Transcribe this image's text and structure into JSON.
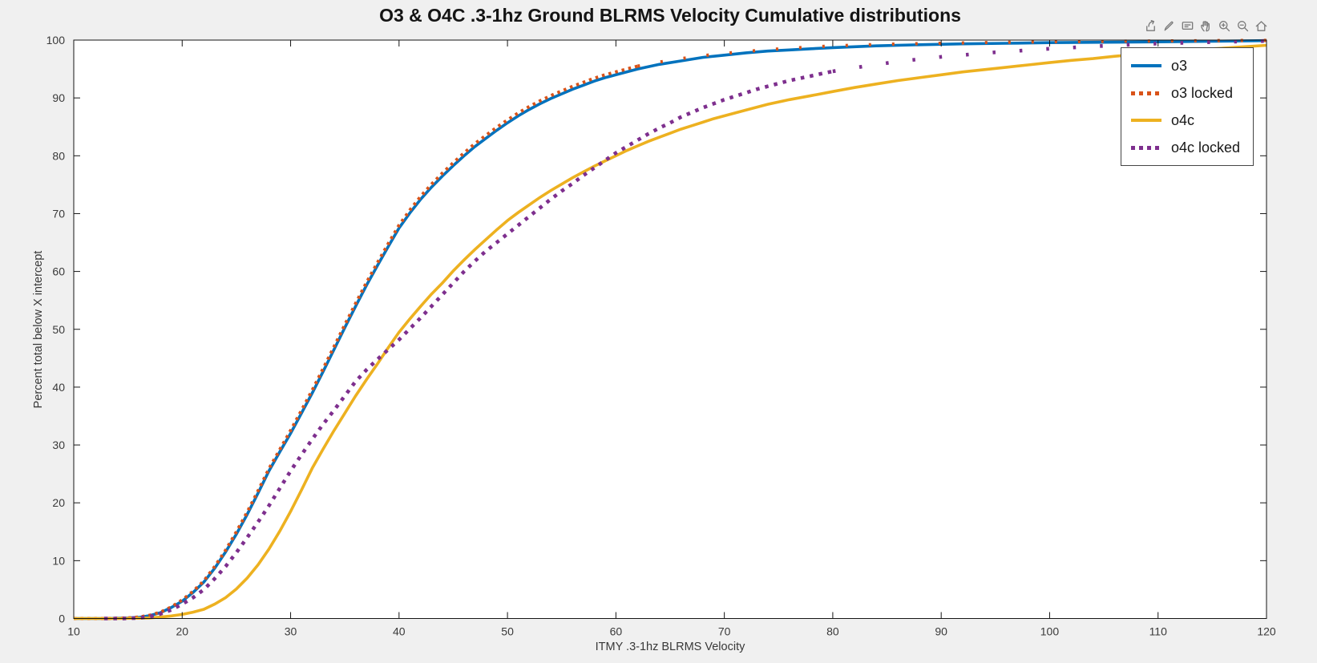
{
  "window": {
    "background": "#f0f0f0"
  },
  "toolbar": {
    "buttons": [
      {
        "name": "export"
      },
      {
        "name": "brush"
      },
      {
        "name": "datatips"
      },
      {
        "name": "pan"
      },
      {
        "name": "zoom-in"
      },
      {
        "name": "zoom-out"
      },
      {
        "name": "restore-view"
      }
    ]
  },
  "chart_data": {
    "type": "line",
    "title": "O3 & O4C .3-1hz Ground BLRMS Velocity Cumulative distributions",
    "xlabel": "ITMY .3-1hz BLRMS Velocity",
    "ylabel": "Percent total below X intercept",
    "xlim": [
      10,
      120
    ],
    "ylim": [
      0,
      100
    ],
    "xticks": [
      10,
      20,
      30,
      40,
      50,
      60,
      70,
      80,
      90,
      100,
      110,
      120
    ],
    "yticks": [
      0,
      10,
      20,
      30,
      40,
      50,
      60,
      70,
      80,
      90,
      100
    ],
    "grid": false,
    "plot_background": "#ffffff",
    "axis_color": "#151515",
    "tick_label_color": "#3a3a3a",
    "legend_position": "top-right",
    "series": [
      {
        "name": "o3",
        "color": "#0072BD",
        "style": "solid",
        "width": 3.6,
        "points": [
          [
            10,
            0
          ],
          [
            13,
            0
          ],
          [
            15,
            0.1
          ],
          [
            16,
            0.2
          ],
          [
            17,
            0.5
          ],
          [
            18,
            1
          ],
          [
            19,
            1.9
          ],
          [
            20,
            3
          ],
          [
            21,
            4.5
          ],
          [
            22,
            6.3
          ],
          [
            23,
            8.7
          ],
          [
            24,
            11.5
          ],
          [
            25,
            14.6
          ],
          [
            26,
            18
          ],
          [
            27,
            21.7
          ],
          [
            28,
            25.5
          ],
          [
            29,
            28.8
          ],
          [
            30,
            32
          ],
          [
            31,
            35.5
          ],
          [
            32,
            39
          ],
          [
            33,
            42.7
          ],
          [
            34,
            46.5
          ],
          [
            35,
            50.3
          ],
          [
            36,
            54
          ],
          [
            37,
            57.6
          ],
          [
            38,
            61
          ],
          [
            39,
            64.3
          ],
          [
            40,
            67.5
          ],
          [
            41,
            70.1
          ],
          [
            42,
            72.5
          ],
          [
            43,
            74.6
          ],
          [
            44,
            76.5
          ],
          [
            45,
            78.3
          ],
          [
            46,
            80
          ],
          [
            47,
            81.6
          ],
          [
            48,
            83
          ],
          [
            49,
            84.4
          ],
          [
            50,
            85.7
          ],
          [
            51,
            86.9
          ],
          [
            52,
            88
          ],
          [
            53,
            89
          ],
          [
            54,
            89.9
          ],
          [
            55,
            90.7
          ],
          [
            56,
            91.5
          ],
          [
            57,
            92.2
          ],
          [
            58,
            92.9
          ],
          [
            59,
            93.5
          ],
          [
            60,
            94
          ],
          [
            62,
            95
          ],
          [
            64,
            95.8
          ],
          [
            66,
            96.4
          ],
          [
            68,
            97
          ],
          [
            70,
            97.4
          ],
          [
            72,
            97.8
          ],
          [
            74,
            98.1
          ],
          [
            76,
            98.3
          ],
          [
            78,
            98.5
          ],
          [
            80,
            98.7
          ],
          [
            84,
            99
          ],
          [
            88,
            99.2
          ],
          [
            92,
            99.35
          ],
          [
            96,
            99.45
          ],
          [
            100,
            99.55
          ],
          [
            105,
            99.62
          ],
          [
            110,
            99.7
          ],
          [
            115,
            99.8
          ],
          [
            120,
            99.9
          ]
        ]
      },
      {
        "name": "o3 locked",
        "color": "#D95319",
        "style": "dotted",
        "width": 4,
        "dash": "3.5 5",
        "sparse_after": 62,
        "sparse_dash": "3 26",
        "points": [
          [
            10,
            0
          ],
          [
            13,
            0
          ],
          [
            15,
            0.1
          ],
          [
            16,
            0.25
          ],
          [
            17,
            0.55
          ],
          [
            18,
            1.1
          ],
          [
            19,
            2
          ],
          [
            20,
            3.2
          ],
          [
            21,
            4.7
          ],
          [
            22,
            6.5
          ],
          [
            23,
            9
          ],
          [
            24,
            11.8
          ],
          [
            25,
            15
          ],
          [
            26,
            18.4
          ],
          [
            27,
            22.1
          ],
          [
            28,
            25.9
          ],
          [
            29,
            29.2
          ],
          [
            30,
            32.5
          ],
          [
            31,
            36
          ],
          [
            32,
            39.5
          ],
          [
            33,
            43.2
          ],
          [
            34,
            47
          ],
          [
            35,
            50.8
          ],
          [
            36,
            54.5
          ],
          [
            37,
            58.1
          ],
          [
            38,
            61.5
          ],
          [
            39,
            64.8
          ],
          [
            40,
            68
          ],
          [
            41,
            70.6
          ],
          [
            42,
            73
          ],
          [
            43,
            75.1
          ],
          [
            44,
            77
          ],
          [
            45,
            78.8
          ],
          [
            46,
            80.5
          ],
          [
            47,
            82.1
          ],
          [
            48,
            83.5
          ],
          [
            49,
            84.9
          ],
          [
            50,
            86.2
          ],
          [
            51,
            87.4
          ],
          [
            52,
            88.5
          ],
          [
            53,
            89.5
          ],
          [
            54,
            90.4
          ],
          [
            55,
            91.2
          ],
          [
            56,
            92
          ],
          [
            57,
            92.7
          ],
          [
            58,
            93.4
          ],
          [
            59,
            94
          ],
          [
            60,
            94.5
          ],
          [
            62,
            95.5
          ],
          [
            64,
            96.2
          ],
          [
            66,
            96.8
          ],
          [
            68,
            97.3
          ],
          [
            70,
            97.7
          ],
          [
            73,
            98.2
          ],
          [
            76,
            98.6
          ],
          [
            80,
            99
          ],
          [
            85,
            99.3
          ],
          [
            90,
            99.45
          ],
          [
            95,
            99.6
          ],
          [
            100,
            99.7
          ],
          [
            105,
            99.78
          ],
          [
            110,
            99.85
          ],
          [
            115,
            99.9
          ],
          [
            120,
            99.95
          ]
        ]
      },
      {
        "name": "o4c",
        "color": "#EDB120",
        "style": "solid",
        "width": 3.6,
        "points": [
          [
            10,
            0
          ],
          [
            14,
            0
          ],
          [
            16,
            0.05
          ],
          [
            17,
            0.1
          ],
          [
            18,
            0.25
          ],
          [
            19,
            0.45
          ],
          [
            20,
            0.7
          ],
          [
            21,
            1.1
          ],
          [
            22,
            1.6
          ],
          [
            23,
            2.5
          ],
          [
            24,
            3.6
          ],
          [
            25,
            5.1
          ],
          [
            26,
            7
          ],
          [
            27,
            9.3
          ],
          [
            28,
            12
          ],
          [
            29,
            15.1
          ],
          [
            30,
            18.5
          ],
          [
            31,
            22.2
          ],
          [
            32,
            26
          ],
          [
            33,
            29.3
          ],
          [
            34,
            32.5
          ],
          [
            35,
            35.5
          ],
          [
            36,
            38.5
          ],
          [
            37,
            41.3
          ],
          [
            38,
            44
          ],
          [
            39,
            46.8
          ],
          [
            40,
            49.5
          ],
          [
            41,
            51.8
          ],
          [
            42,
            54
          ],
          [
            43,
            56.1
          ],
          [
            44,
            58
          ],
          [
            45,
            60.1
          ],
          [
            46,
            62
          ],
          [
            47,
            63.8
          ],
          [
            48,
            65.5
          ],
          [
            49,
            67.2
          ],
          [
            50,
            68.8
          ],
          [
            51,
            70.2
          ],
          [
            52,
            71.5
          ],
          [
            53,
            72.8
          ],
          [
            54,
            74
          ],
          [
            55,
            75.1
          ],
          [
            56,
            76.2
          ],
          [
            57,
            77.2
          ],
          [
            58,
            78.2
          ],
          [
            59,
            79.1
          ],
          [
            60,
            80
          ],
          [
            61,
            80.9
          ],
          [
            62,
            81.7
          ],
          [
            63,
            82.5
          ],
          [
            64,
            83.2
          ],
          [
            65,
            83.9
          ],
          [
            66,
            84.6
          ],
          [
            67,
            85.2
          ],
          [
            68,
            85.8
          ],
          [
            69,
            86.4
          ],
          [
            70,
            86.9
          ],
          [
            72,
            87.9
          ],
          [
            74,
            88.9
          ],
          [
            76,
            89.7
          ],
          [
            78,
            90.4
          ],
          [
            80,
            91.1
          ],
          [
            82,
            91.8
          ],
          [
            84,
            92.4
          ],
          [
            86,
            93
          ],
          [
            88,
            93.5
          ],
          [
            90,
            94
          ],
          [
            92,
            94.5
          ],
          [
            94,
            94.9
          ],
          [
            96,
            95.3
          ],
          [
            98,
            95.7
          ],
          [
            100,
            96.1
          ],
          [
            102,
            96.5
          ],
          [
            104,
            96.8
          ],
          [
            106,
            97.2
          ],
          [
            108,
            97.5
          ],
          [
            110,
            97.8
          ],
          [
            112,
            98.1
          ],
          [
            114,
            98.4
          ],
          [
            116,
            98.6
          ],
          [
            118,
            98.85
          ],
          [
            120,
            99.1
          ]
        ]
      },
      {
        "name": "o4c locked",
        "color": "#7E2F8E",
        "style": "dotted",
        "width": 4.6,
        "dash": "4.5 7",
        "sparse_after": 80,
        "sparse_dash": "3.5 30",
        "points": [
          [
            12.8,
            0
          ],
          [
            14.6,
            0
          ],
          [
            16,
            0.1
          ],
          [
            17,
            0.3
          ],
          [
            18,
            0.8
          ],
          [
            19,
            1.5
          ],
          [
            20,
            2.5
          ],
          [
            21,
            3.6
          ],
          [
            22,
            5
          ],
          [
            23,
            6.9
          ],
          [
            24,
            9
          ],
          [
            25,
            11.4
          ],
          [
            26,
            14
          ],
          [
            27,
            16.7
          ],
          [
            28,
            19.5
          ],
          [
            29,
            22.5
          ],
          [
            30,
            25.5
          ],
          [
            31,
            28.3
          ],
          [
            32,
            31
          ],
          [
            33,
            33.6
          ],
          [
            34,
            36
          ],
          [
            35,
            38.5
          ],
          [
            36,
            41
          ],
          [
            37,
            43
          ],
          [
            38,
            44.8
          ],
          [
            39,
            46.5
          ],
          [
            40,
            48.2
          ],
          [
            41,
            50.1
          ],
          [
            42,
            52
          ],
          [
            43,
            54
          ],
          [
            44,
            56
          ],
          [
            45,
            58
          ],
          [
            46,
            60
          ],
          [
            47,
            61.8
          ],
          [
            48,
            63.5
          ],
          [
            49,
            65
          ],
          [
            50,
            66.5
          ],
          [
            51,
            68
          ],
          [
            52,
            69.5
          ],
          [
            53,
            71
          ],
          [
            54,
            72.5
          ],
          [
            55,
            73.9
          ],
          [
            56,
            75.2
          ],
          [
            57,
            76.6
          ],
          [
            58,
            77.9
          ],
          [
            59,
            79.2
          ],
          [
            60,
            80.5
          ],
          [
            61,
            81.6
          ],
          [
            62,
            82.7
          ],
          [
            63,
            83.8
          ],
          [
            64,
            84.8
          ],
          [
            65,
            85.7
          ],
          [
            66,
            86.7
          ],
          [
            67,
            87.5
          ],
          [
            68,
            88.3
          ],
          [
            69,
            89
          ],
          [
            70,
            89.7
          ],
          [
            71,
            90.3
          ],
          [
            72,
            90.9
          ],
          [
            73,
            91.5
          ],
          [
            74,
            92
          ],
          [
            75,
            92.5
          ],
          [
            76,
            93
          ],
          [
            77,
            93.4
          ],
          [
            78,
            93.8
          ],
          [
            79,
            94.2
          ],
          [
            80,
            94.6
          ],
          [
            83,
            95.5
          ],
          [
            86,
            96.3
          ],
          [
            90,
            97.1
          ],
          [
            95,
            97.9
          ],
          [
            100,
            98.5
          ],
          [
            105,
            99
          ],
          [
            110,
            99.4
          ],
          [
            115,
            99.65
          ],
          [
            120,
            99.85
          ]
        ]
      }
    ]
  }
}
